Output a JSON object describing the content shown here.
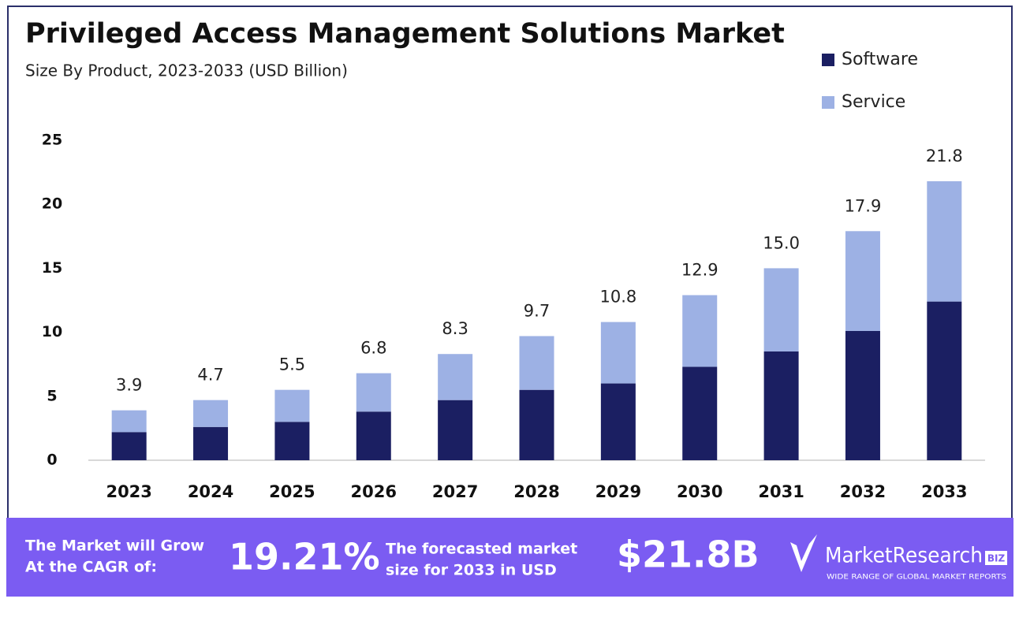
{
  "chart_data": {
    "type": "stacked-bar",
    "title": "Privileged Access Management Solutions Market",
    "subtitle": "Size By Product, 2023-2033 (USD Billion)",
    "categories": [
      "2023",
      "2024",
      "2025",
      "2026",
      "2027",
      "2028",
      "2029",
      "2030",
      "2031",
      "2032",
      "2033"
    ],
    "series": [
      {
        "name": "Software",
        "color": "#1b1f62",
        "values": [
          2.2,
          2.6,
          3.0,
          3.8,
          4.7,
          5.5,
          6.0,
          7.3,
          8.5,
          10.1,
          12.4
        ]
      },
      {
        "name": "Service",
        "color": "#9db1e4",
        "values": [
          1.7,
          2.1,
          2.5,
          3.0,
          3.6,
          4.2,
          4.8,
          5.6,
          6.5,
          7.8,
          9.4
        ]
      }
    ],
    "totals": [
      3.9,
      4.7,
      5.5,
      6.8,
      8.3,
      9.7,
      10.8,
      12.9,
      15.0,
      17.9,
      21.8
    ],
    "total_labels": [
      "3.9",
      "4.7",
      "5.5",
      "6.8",
      "8.3",
      "9.7",
      "10.8",
      "12.9",
      "15.0",
      "17.9",
      "21.8"
    ],
    "ylim": [
      0,
      25
    ],
    "yticks": [
      0,
      5,
      10,
      15,
      20,
      25
    ],
    "grid": false,
    "legend": "top-right"
  },
  "footer": {
    "cagr_text": [
      "The Market will Grow",
      "At the CAGR of:"
    ],
    "cagr": "19.21%",
    "forecast_text": [
      "The forecasted market",
      "size for 2033 in USD"
    ],
    "forecast": "$21.8B",
    "brand": "MarketResearch",
    "brand_tag": "BIZ",
    "brand_slogan": "WIDE RANGE OF GLOBAL MARKET REPORTS"
  }
}
